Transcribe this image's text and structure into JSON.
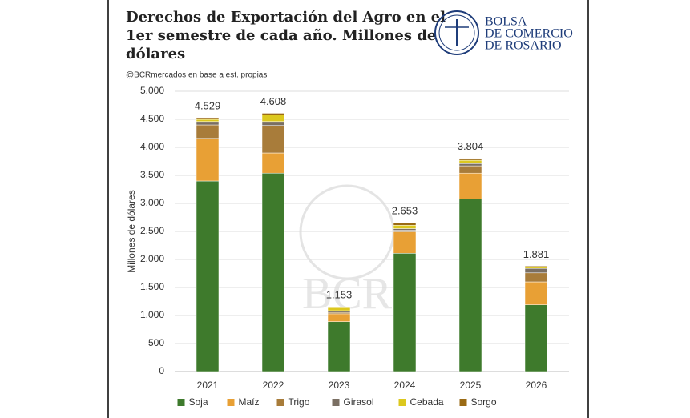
{
  "chart_data": {
    "type": "stacked-bar",
    "title": "Derechos de Exportación del Agro en el 1er semestre de cada año. Millones de dólares",
    "subtitle": "@BCRmercados en base a est. propias",
    "logo": [
      "BOLSA",
      "DE COMERCIO",
      "DE ROSARIO"
    ],
    "watermark": "BCR",
    "y_label": "Millones de dólares",
    "categories": [
      "2021",
      "2022",
      "2023",
      "2024",
      "2025",
      "2026"
    ],
    "series": [
      {
        "name": "Soja",
        "color": "#3e7a2c",
        "values": [
          3400,
          3540,
          890,
          2110,
          3080,
          1190
        ]
      },
      {
        "name": "Maíz",
        "color": "#e8a035",
        "values": [
          760,
          360,
          140,
          380,
          460,
          410
        ]
      },
      {
        "name": "Trigo",
        "color": "#a87c3a",
        "values": [
          240,
          490,
          25,
          30,
          130,
          160
        ]
      },
      {
        "name": "Girasol",
        "color": "#7a6f63",
        "values": [
          60,
          70,
          30,
          30,
          40,
          80
        ]
      },
      {
        "name": "Cebada",
        "color": "#dcc81e",
        "values": [
          40,
          120,
          55,
          60,
          60,
          25
        ]
      },
      {
        "name": "Sorgo",
        "color": "#9a6a14",
        "values": [
          29,
          28,
          13,
          43,
          34,
          16
        ]
      }
    ],
    "totals": {
      "values": [
        4529,
        4608,
        1153,
        2653,
        3804,
        1881
      ],
      "value_labels": [
        "4.529",
        "4.608",
        "1.153",
        "2.653",
        "3.804",
        "1.881"
      ]
    },
    "ylim": [
      0,
      5000
    ],
    "yticks": [
      0,
      500,
      {
        "value": 1000,
        "label": "1.000"
      },
      {
        "value": 1500,
        "label": "1.500"
      },
      {
        "value": 2000,
        "label": "2.000"
      },
      {
        "value": 2500,
        "label": "2.500"
      },
      {
        "value": 3000,
        "label": "3.000"
      },
      {
        "value": 3500,
        "label": "3.500"
      },
      {
        "value": 4000,
        "label": "4.000"
      },
      {
        "value": 4500,
        "label": "4.500"
      },
      {
        "value": 5000,
        "label": "5.000"
      }
    ],
    "grid": true,
    "legend": "bottom"
  }
}
